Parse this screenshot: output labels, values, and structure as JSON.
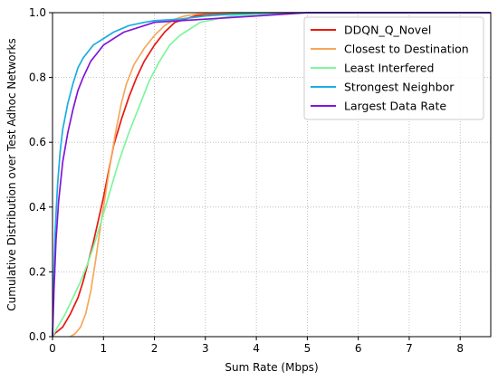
{
  "chart_data": {
    "type": "line",
    "xlabel": "Sum Rate (Mbps)",
    "ylabel": "Cumulative Distribution over Test Adhoc Networks",
    "xlim": [
      0,
      8.6
    ],
    "ylim": [
      0,
      1.0
    ],
    "xticks": [
      "0",
      "1",
      "2",
      "3",
      "4",
      "5",
      "6",
      "7",
      "8"
    ],
    "yticks": [
      "0.0",
      "0.2",
      "0.4",
      "0.6",
      "0.8",
      "1.0"
    ],
    "grid": true,
    "legend_position": "top-right",
    "series": [
      {
        "name": "DDQN_Q_Novel",
        "color": "#e8180f",
        "x": [
          0,
          0.05,
          0.2,
          0.35,
          0.5,
          0.6,
          0.7,
          0.8,
          0.9,
          1.0,
          1.1,
          1.2,
          1.35,
          1.5,
          1.65,
          1.8,
          2.0,
          2.2,
          2.4,
          2.6,
          2.8,
          3.0,
          3.5,
          4.0,
          4.5,
          5.0,
          6.0
        ],
        "y": [
          0,
          0.01,
          0.03,
          0.07,
          0.12,
          0.17,
          0.23,
          0.29,
          0.36,
          0.43,
          0.51,
          0.59,
          0.67,
          0.74,
          0.8,
          0.85,
          0.9,
          0.94,
          0.97,
          0.98,
          0.99,
          0.995,
          0.998,
          0.999,
          1.0,
          1.0,
          1.0
        ]
      },
      {
        "name": "Closest to Destination",
        "color": "#f5a85a",
        "x": [
          0.35,
          0.45,
          0.55,
          0.65,
          0.75,
          0.85,
          0.95,
          1.05,
          1.15,
          1.25,
          1.35,
          1.45,
          1.6,
          1.8,
          2.0,
          2.2,
          2.4,
          2.6,
          2.8,
          3.0,
          3.5,
          4.0,
          4.5,
          5.0
        ],
        "y": [
          0,
          0.01,
          0.03,
          0.07,
          0.14,
          0.24,
          0.35,
          0.45,
          0.55,
          0.64,
          0.72,
          0.78,
          0.84,
          0.89,
          0.93,
          0.96,
          0.98,
          0.99,
          0.995,
          0.998,
          1.0,
          1.0,
          1.0,
          1.0
        ]
      },
      {
        "name": "Least Interfered",
        "color": "#7ef59e",
        "x": [
          0,
          0.1,
          0.25,
          0.4,
          0.55,
          0.7,
          0.85,
          1.0,
          1.15,
          1.3,
          1.5,
          1.7,
          1.9,
          2.1,
          2.3,
          2.5,
          2.7,
          2.9,
          3.2,
          3.5,
          4.0,
          4.5,
          5.0,
          6.0
        ],
        "y": [
          0,
          0.03,
          0.07,
          0.12,
          0.17,
          0.23,
          0.3,
          0.38,
          0.46,
          0.54,
          0.63,
          0.71,
          0.79,
          0.85,
          0.9,
          0.93,
          0.95,
          0.97,
          0.98,
          0.99,
          0.995,
          0.999,
          1.0,
          1.0
        ]
      },
      {
        "name": "Strongest Neighbor",
        "color": "#1aaee0",
        "x": [
          0,
          0.02,
          0.05,
          0.1,
          0.15,
          0.2,
          0.3,
          0.4,
          0.5,
          0.6,
          0.8,
          1.0,
          1.2,
          1.5,
          1.8,
          2.0,
          2.5,
          3.0,
          3.5,
          4.0,
          5.0,
          6.0
        ],
        "y": [
          0,
          0.15,
          0.32,
          0.47,
          0.57,
          0.64,
          0.72,
          0.78,
          0.83,
          0.86,
          0.9,
          0.92,
          0.94,
          0.96,
          0.97,
          0.975,
          0.98,
          0.99,
          0.995,
          0.998,
          1.0,
          1.0
        ]
      },
      {
        "name": "Largest Data Rate",
        "color": "#8215d8",
        "x": [
          0,
          0.03,
          0.07,
          0.12,
          0.2,
          0.3,
          0.4,
          0.5,
          0.6,
          0.75,
          0.9,
          1.0,
          1.2,
          1.4,
          1.6,
          1.8,
          2.0,
          2.5,
          3.0,
          3.5,
          4.0,
          5.0,
          6.0
        ],
        "y": [
          0,
          0.15,
          0.3,
          0.42,
          0.54,
          0.63,
          0.7,
          0.76,
          0.8,
          0.85,
          0.88,
          0.9,
          0.92,
          0.94,
          0.95,
          0.96,
          0.97,
          0.975,
          0.98,
          0.985,
          0.99,
          1.0,
          1.0
        ]
      }
    ]
  }
}
